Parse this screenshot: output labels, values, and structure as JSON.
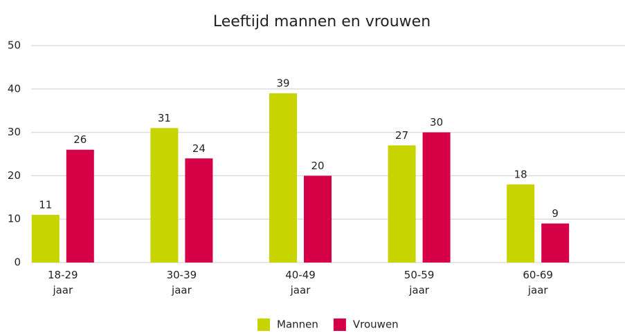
{
  "chart_data": {
    "type": "bar",
    "title": "Leeftijd mannen en vrouwen",
    "categories": [
      "18-29 jaar",
      "30-39 jaar",
      "40-49 jaar",
      "50-59 jaar",
      "60-69 jaar"
    ],
    "series": [
      {
        "name": "Mannen",
        "color": "#c8d400",
        "values": [
          11,
          31,
          39,
          27,
          18
        ]
      },
      {
        "name": "Vrouwen",
        "color": "#d50045",
        "values": [
          26,
          24,
          20,
          30,
          9
        ]
      }
    ],
    "ylim": [
      0,
      50
    ],
    "yticks": [
      0,
      10,
      20,
      30,
      40,
      50
    ],
    "grid": true,
    "legend": "bottom"
  }
}
